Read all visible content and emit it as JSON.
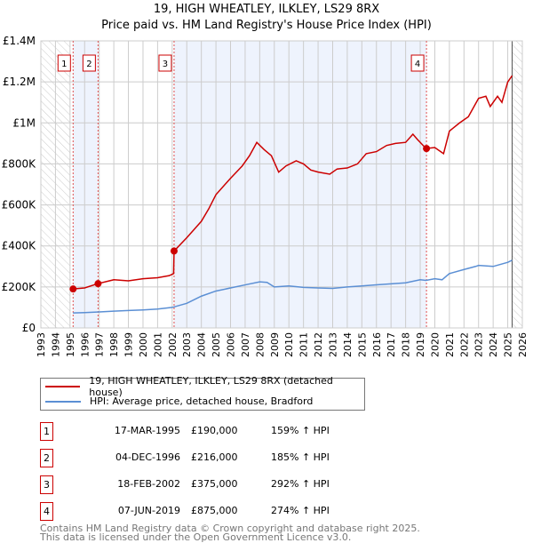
{
  "chart_data": {
    "type": "line",
    "title": "19, HIGH WHEATLEY, ILKLEY, LS29 8RX",
    "subtitle": "Price paid vs. HM Land Registry's House Price Index (HPI)",
    "xlim": [
      1993,
      2026
    ],
    "ylim": [
      0,
      1400000
    ],
    "x_ticks": [
      "1993",
      "1994",
      "1995",
      "1996",
      "1997",
      "1998",
      "1999",
      "2000",
      "2001",
      "2002",
      "2003",
      "2004",
      "2005",
      "2006",
      "2007",
      "2008",
      "2009",
      "2010",
      "2011",
      "2012",
      "2013",
      "2014",
      "2015",
      "2016",
      "2017",
      "2018",
      "2019",
      "2020",
      "2021",
      "2022",
      "2023",
      "2024",
      "2025",
      "2026"
    ],
    "y_ticks": [
      {
        "v": 0,
        "label": "£0"
      },
      {
        "v": 200000,
        "label": "£200K"
      },
      {
        "v": 400000,
        "label": "£400K"
      },
      {
        "v": 600000,
        "label": "£600K"
      },
      {
        "v": 800000,
        "label": "£800K"
      },
      {
        "v": 1000000,
        "label": "£1M"
      },
      {
        "v": 1200000,
        "label": "£1.2M"
      },
      {
        "v": 1400000,
        "label": "£1.4M"
      }
    ],
    "grid": true,
    "series": [
      {
        "name": "19, HIGH WHEATLEY, ILKLEY, LS29 8RX (detached house)",
        "color": "#cc0000",
        "x": [
          1995.2,
          1996.0,
          1996.9,
          1998,
          1999,
          2000,
          2001,
          2001.8,
          2002.1,
          2002.13,
          2003,
          2004,
          2004.5,
          2005,
          2006,
          2006.8,
          2007.3,
          2007.8,
          2008.3,
          2008.8,
          2009.3,
          2009.8,
          2010.5,
          2011,
          2011.5,
          2012,
          2012.8,
          2013.3,
          2014,
          2014.7,
          2015.3,
          2016,
          2016.7,
          2017.3,
          2018,
          2018.5,
          2018.8,
          2019.4,
          2020,
          2020.6,
          2021,
          2021.7,
          2022.3,
          2023,
          2023.5,
          2023.8,
          2024.3,
          2024.6,
          2025,
          2025.3
        ],
        "y": [
          190000,
          195000,
          216000,
          235000,
          230000,
          240000,
          245000,
          255000,
          265000,
          375000,
          440000,
          520000,
          580000,
          650000,
          730000,
          790000,
          840000,
          905000,
          870000,
          840000,
          760000,
          790000,
          815000,
          800000,
          770000,
          760000,
          750000,
          775000,
          780000,
          800000,
          850000,
          860000,
          890000,
          900000,
          905000,
          945000,
          920000,
          875000,
          880000,
          850000,
          960000,
          1000000,
          1030000,
          1120000,
          1130000,
          1080000,
          1130000,
          1100000,
          1200000,
          1230000
        ]
      },
      {
        "name": "HPI: Average price, detached house, Bradford",
        "color": "#5b8fd4",
        "x": [
          1995.2,
          1996,
          1997,
          1998,
          1999,
          2000,
          2001,
          2002,
          2003,
          2004,
          2005,
          2006,
          2007,
          2008,
          2008.5,
          2009,
          2010,
          2011,
          2012,
          2013,
          2014,
          2015,
          2016,
          2017,
          2018,
          2019,
          2019.4,
          2020,
          2020.5,
          2021,
          2022,
          2022.8,
          2023,
          2024,
          2025,
          2025.3
        ],
        "y": [
          73000,
          75000,
          78000,
          82000,
          85000,
          88000,
          92000,
          100000,
          120000,
          155000,
          180000,
          195000,
          210000,
          225000,
          222000,
          200000,
          205000,
          198000,
          195000,
          193000,
          200000,
          205000,
          210000,
          215000,
          220000,
          235000,
          232000,
          240000,
          235000,
          265000,
          285000,
          300000,
          305000,
          300000,
          320000,
          330000
        ]
      }
    ],
    "sales": [
      {
        "n": "1",
        "x": 1995.21,
        "y": 190000,
        "date": "17-MAR-1995",
        "price": "£190,000",
        "hpi": "159% ↑ HPI"
      },
      {
        "n": "2",
        "x": 1996.92,
        "y": 216000,
        "date": "04-DEC-1996",
        "price": "£216,000",
        "hpi": "185% ↑ HPI"
      },
      {
        "n": "3",
        "x": 2002.13,
        "y": 375000,
        "date": "18-FEB-2002",
        "price": "£375,000",
        "hpi": "292% ↑ HPI"
      },
      {
        "n": "4",
        "x": 2019.43,
        "y": 875000,
        "date": "07-JUN-2019",
        "price": "£875,000",
        "hpi": "274% ↑ HPI"
      }
    ],
    "data_start": 1995.0,
    "data_end": 2025.3
  },
  "footer": {
    "line1": "Contains HM Land Registry data © Crown copyright and database right 2025.",
    "line2": "This data is licensed under the Open Government Licence v3.0."
  }
}
